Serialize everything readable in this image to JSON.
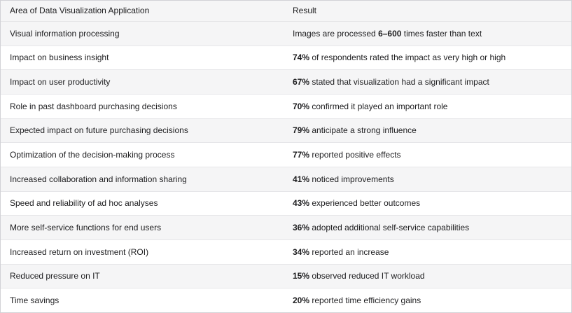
{
  "chart_data": {
    "type": "table",
    "title": "",
    "columns": [
      "Area of Data Visualization Application",
      "Result"
    ],
    "rows": [
      {
        "area": "Visual information processing",
        "result": [
          {
            "text": "Images are processed ",
            "bold": false
          },
          {
            "text": "6–600",
            "bold": true
          },
          {
            "text": " times faster than text",
            "bold": false
          }
        ]
      },
      {
        "area": "Impact on business insight",
        "result": [
          {
            "text": "74%",
            "bold": true
          },
          {
            "text": " of respondents rated the impact as very high or high",
            "bold": false
          }
        ]
      },
      {
        "area": "Impact on user productivity",
        "result": [
          {
            "text": "67%",
            "bold": true
          },
          {
            "text": " stated that visualization had a significant impact",
            "bold": false
          }
        ]
      },
      {
        "area": "Role in past dashboard purchasing decisions",
        "result": [
          {
            "text": "70%",
            "bold": true
          },
          {
            "text": " confirmed it played an important role",
            "bold": false
          }
        ]
      },
      {
        "area": "Expected impact on future purchasing decisions",
        "result": [
          {
            "text": "79%",
            "bold": true
          },
          {
            "text": " anticipate a strong influence",
            "bold": false
          }
        ]
      },
      {
        "area": "Optimization of the decision-making process",
        "result": [
          {
            "text": "77%",
            "bold": true
          },
          {
            "text": " reported positive effects",
            "bold": false
          }
        ]
      },
      {
        "area": "Increased collaboration and information sharing",
        "result": [
          {
            "text": "41%",
            "bold": true
          },
          {
            "text": " noticed improvements",
            "bold": false
          }
        ]
      },
      {
        "area": "Speed and reliability of ad hoc analyses",
        "result": [
          {
            "text": "43%",
            "bold": true
          },
          {
            "text": " experienced better outcomes",
            "bold": false
          }
        ]
      },
      {
        "area": "More self-service functions for end users",
        "result": [
          {
            "text": "36%",
            "bold": true
          },
          {
            "text": " adopted additional self-service capabilities",
            "bold": false
          }
        ]
      },
      {
        "area": "Increased return on investment (ROI)",
        "result": [
          {
            "text": "34%",
            "bold": true
          },
          {
            "text": " reported an increase",
            "bold": false
          }
        ]
      },
      {
        "area": "Reduced pressure on IT",
        "result": [
          {
            "text": "15%",
            "bold": true
          },
          {
            "text": " observed reduced IT workload",
            "bold": false
          }
        ]
      },
      {
        "area": "Time savings",
        "result": [
          {
            "text": "20%",
            "bold": true
          },
          {
            "text": " reported time efficiency gains",
            "bold": false
          }
        ]
      }
    ],
    "layout": {
      "header_row": true,
      "zebra_striping": true,
      "first_data_row_background": "white"
    }
  },
  "style": {
    "header_bg": "#f5f5f6",
    "row_alt_bg": "#f5f5f6",
    "row_bg": "#ffffff",
    "outer_border": "#d2d2d6",
    "row_border": "#e6e6e9",
    "text_color": "#1d1d1f"
  }
}
